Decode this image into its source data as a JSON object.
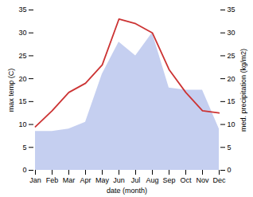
{
  "chart_data": {
    "type": "line",
    "xlabel": "date (month)",
    "ylabel": "max temp (C)",
    "y2label": "med. precipitation (kg/m2)",
    "categories": [
      "Jan",
      "Feb",
      "Mar",
      "Apr",
      "May",
      "Jun",
      "Jul",
      "Aug",
      "Sep",
      "Oct",
      "Nov",
      "Dec"
    ],
    "series": [
      {
        "type": "area",
        "axis": "y2",
        "color": "#c5cff0",
        "values": [
          8.5,
          8.5,
          9.0,
          10.5,
          21.0,
          28.0,
          25.0,
          30.0,
          18.0,
          17.5,
          17.5,
          9.0
        ]
      },
      {
        "type": "line",
        "color": "#cc3333",
        "values": [
          9.5,
          13.0,
          17.0,
          19.0,
          23.0,
          33.0,
          32.0,
          30.0,
          22.0,
          17.0,
          13.0,
          12.5
        ]
      }
    ],
    "ylim": [
      0,
      35
    ],
    "yticks": [
      0,
      5,
      10,
      15,
      20,
      25,
      30,
      35
    ],
    "y2lim": [
      0,
      35
    ],
    "y2ticks": [
      0,
      5,
      10,
      15,
      20,
      25,
      30,
      35
    ],
    "grid": false
  }
}
